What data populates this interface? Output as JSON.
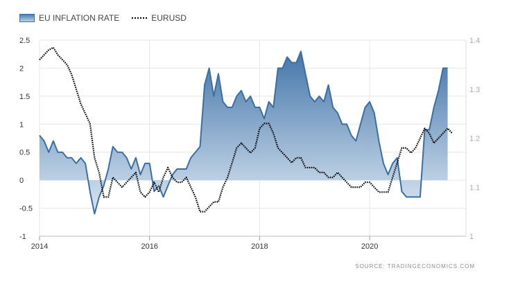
{
  "legend": {
    "inflation_label": "EU INFLATION RATE",
    "eurusd_label": "EURUSD"
  },
  "source": "SOURCE: TRADINGECONOMICS.COM",
  "chart_data": {
    "type": "area",
    "xlim": [
      2014.0,
      2021.75
    ],
    "x_ticks": [
      2014,
      2016,
      2018,
      2020
    ],
    "x_tick_labels": [
      "2014",
      "2016",
      "2018",
      "2020"
    ],
    "left_axis": {
      "ylim": [
        -1,
        2.5
      ],
      "ticks": [
        -1,
        -0.5,
        0,
        0.5,
        1,
        1.5,
        2,
        2.5
      ],
      "tick_labels": [
        "-1",
        "-0.5",
        "0",
        "0.5",
        "1",
        "1.5",
        "2",
        "2.5"
      ]
    },
    "right_axis": {
      "ylim": [
        1.0,
        1.4
      ],
      "ticks": [
        1.0,
        1.1,
        1.2,
        1.3,
        1.4
      ],
      "tick_labels": [
        "1",
        "1.1",
        "1.2",
        "1.3",
        "1.4"
      ]
    },
    "grid": true,
    "legend_position": "top-left",
    "series": [
      {
        "name": "EU INFLATION RATE",
        "type": "area",
        "axis": "left",
        "color": "#3a6ea5",
        "x": [
          2014.0,
          2014.083,
          2014.167,
          2014.25,
          2014.333,
          2014.417,
          2014.5,
          2014.583,
          2014.667,
          2014.75,
          2014.833,
          2014.917,
          2015.0,
          2015.083,
          2015.167,
          2015.25,
          2015.333,
          2015.417,
          2015.5,
          2015.583,
          2015.667,
          2015.75,
          2015.833,
          2015.917,
          2016.0,
          2016.083,
          2016.167,
          2016.25,
          2016.333,
          2016.417,
          2016.5,
          2016.583,
          2016.667,
          2016.75,
          2016.833,
          2016.917,
          2017.0,
          2017.083,
          2017.167,
          2017.25,
          2017.333,
          2017.417,
          2017.5,
          2017.583,
          2017.667,
          2017.75,
          2017.833,
          2017.917,
          2018.0,
          2018.083,
          2018.167,
          2018.25,
          2018.333,
          2018.417,
          2018.5,
          2018.583,
          2018.667,
          2018.75,
          2018.833,
          2018.917,
          2019.0,
          2019.083,
          2019.167,
          2019.25,
          2019.333,
          2019.417,
          2019.5,
          2019.583,
          2019.667,
          2019.75,
          2019.833,
          2019.917,
          2020.0,
          2020.083,
          2020.167,
          2020.25,
          2020.333,
          2020.417,
          2020.5,
          2020.583,
          2020.667,
          2020.75,
          2020.833,
          2020.917,
          2021.0,
          2021.083,
          2021.167,
          2021.25,
          2021.333,
          2021.417
        ],
        "values": [
          0.8,
          0.7,
          0.5,
          0.7,
          0.5,
          0.5,
          0.4,
          0.4,
          0.3,
          0.4,
          0.3,
          -0.2,
          -0.6,
          -0.3,
          -0.1,
          0.2,
          0.6,
          0.5,
          0.5,
          0.4,
          0.2,
          0.4,
          0.1,
          0.3,
          0.3,
          -0.2,
          -0.1,
          -0.3,
          -0.1,
          0.1,
          0.2,
          0.2,
          0.2,
          0.4,
          0.5,
          0.6,
          1.7,
          2.0,
          1.5,
          1.9,
          1.4,
          1.3,
          1.3,
          1.5,
          1.6,
          1.4,
          1.5,
          1.3,
          1.3,
          1.1,
          1.4,
          1.3,
          2.0,
          2.0,
          2.2,
          2.1,
          2.1,
          2.3,
          1.9,
          1.5,
          1.4,
          1.5,
          1.4,
          1.7,
          1.3,
          1.2,
          1.0,
          1.0,
          0.8,
          0.7,
          1.0,
          1.3,
          1.4,
          1.2,
          0.7,
          0.3,
          0.1,
          0.3,
          0.4,
          -0.2,
          -0.3,
          -0.3,
          -0.3,
          -0.3,
          0.9,
          0.9,
          1.3,
          1.6,
          2.0,
          2.0
        ]
      },
      {
        "name": "EURUSD",
        "type": "line",
        "axis": "right",
        "style": "dotted",
        "color": "#000000",
        "x": [
          2014.0,
          2014.083,
          2014.167,
          2014.25,
          2014.333,
          2014.417,
          2014.5,
          2014.583,
          2014.667,
          2014.75,
          2014.833,
          2014.917,
          2015.0,
          2015.083,
          2015.167,
          2015.25,
          2015.333,
          2015.417,
          2015.5,
          2015.583,
          2015.667,
          2015.75,
          2015.833,
          2015.917,
          2016.0,
          2016.083,
          2016.167,
          2016.25,
          2016.333,
          2016.417,
          2016.5,
          2016.583,
          2016.667,
          2016.75,
          2016.833,
          2016.917,
          2017.0,
          2017.083,
          2017.167,
          2017.25,
          2017.333,
          2017.417,
          2017.5,
          2017.583,
          2017.667,
          2017.75,
          2017.833,
          2017.917,
          2018.0,
          2018.083,
          2018.167,
          2018.25,
          2018.333,
          2018.417,
          2018.5,
          2018.583,
          2018.667,
          2018.75,
          2018.833,
          2018.917,
          2019.0,
          2019.083,
          2019.167,
          2019.25,
          2019.333,
          2019.417,
          2019.5,
          2019.583,
          2019.667,
          2019.75,
          2019.833,
          2019.917,
          2020.0,
          2020.083,
          2020.167,
          2020.25,
          2020.333,
          2020.417,
          2020.5,
          2020.583,
          2020.667,
          2020.75,
          2020.833,
          2020.917,
          2021.0,
          2021.083,
          2021.167,
          2021.25,
          2021.333,
          2021.417,
          2021.5
        ],
        "values": [
          1.36,
          1.37,
          1.38,
          1.385,
          1.37,
          1.36,
          1.35,
          1.33,
          1.3,
          1.27,
          1.25,
          1.23,
          1.16,
          1.13,
          1.08,
          1.08,
          1.12,
          1.11,
          1.1,
          1.11,
          1.12,
          1.13,
          1.09,
          1.08,
          1.09,
          1.11,
          1.09,
          1.12,
          1.14,
          1.12,
          1.11,
          1.11,
          1.12,
          1.1,
          1.08,
          1.05,
          1.05,
          1.06,
          1.07,
          1.07,
          1.1,
          1.12,
          1.15,
          1.18,
          1.19,
          1.18,
          1.17,
          1.18,
          1.22,
          1.23,
          1.23,
          1.21,
          1.18,
          1.17,
          1.16,
          1.15,
          1.16,
          1.16,
          1.14,
          1.14,
          1.14,
          1.13,
          1.13,
          1.12,
          1.12,
          1.13,
          1.12,
          1.11,
          1.1,
          1.1,
          1.1,
          1.11,
          1.11,
          1.1,
          1.09,
          1.09,
          1.09,
          1.12,
          1.15,
          1.18,
          1.18,
          1.17,
          1.18,
          1.2,
          1.22,
          1.21,
          1.19,
          1.2,
          1.21,
          1.22,
          1.21
        ]
      }
    ]
  }
}
